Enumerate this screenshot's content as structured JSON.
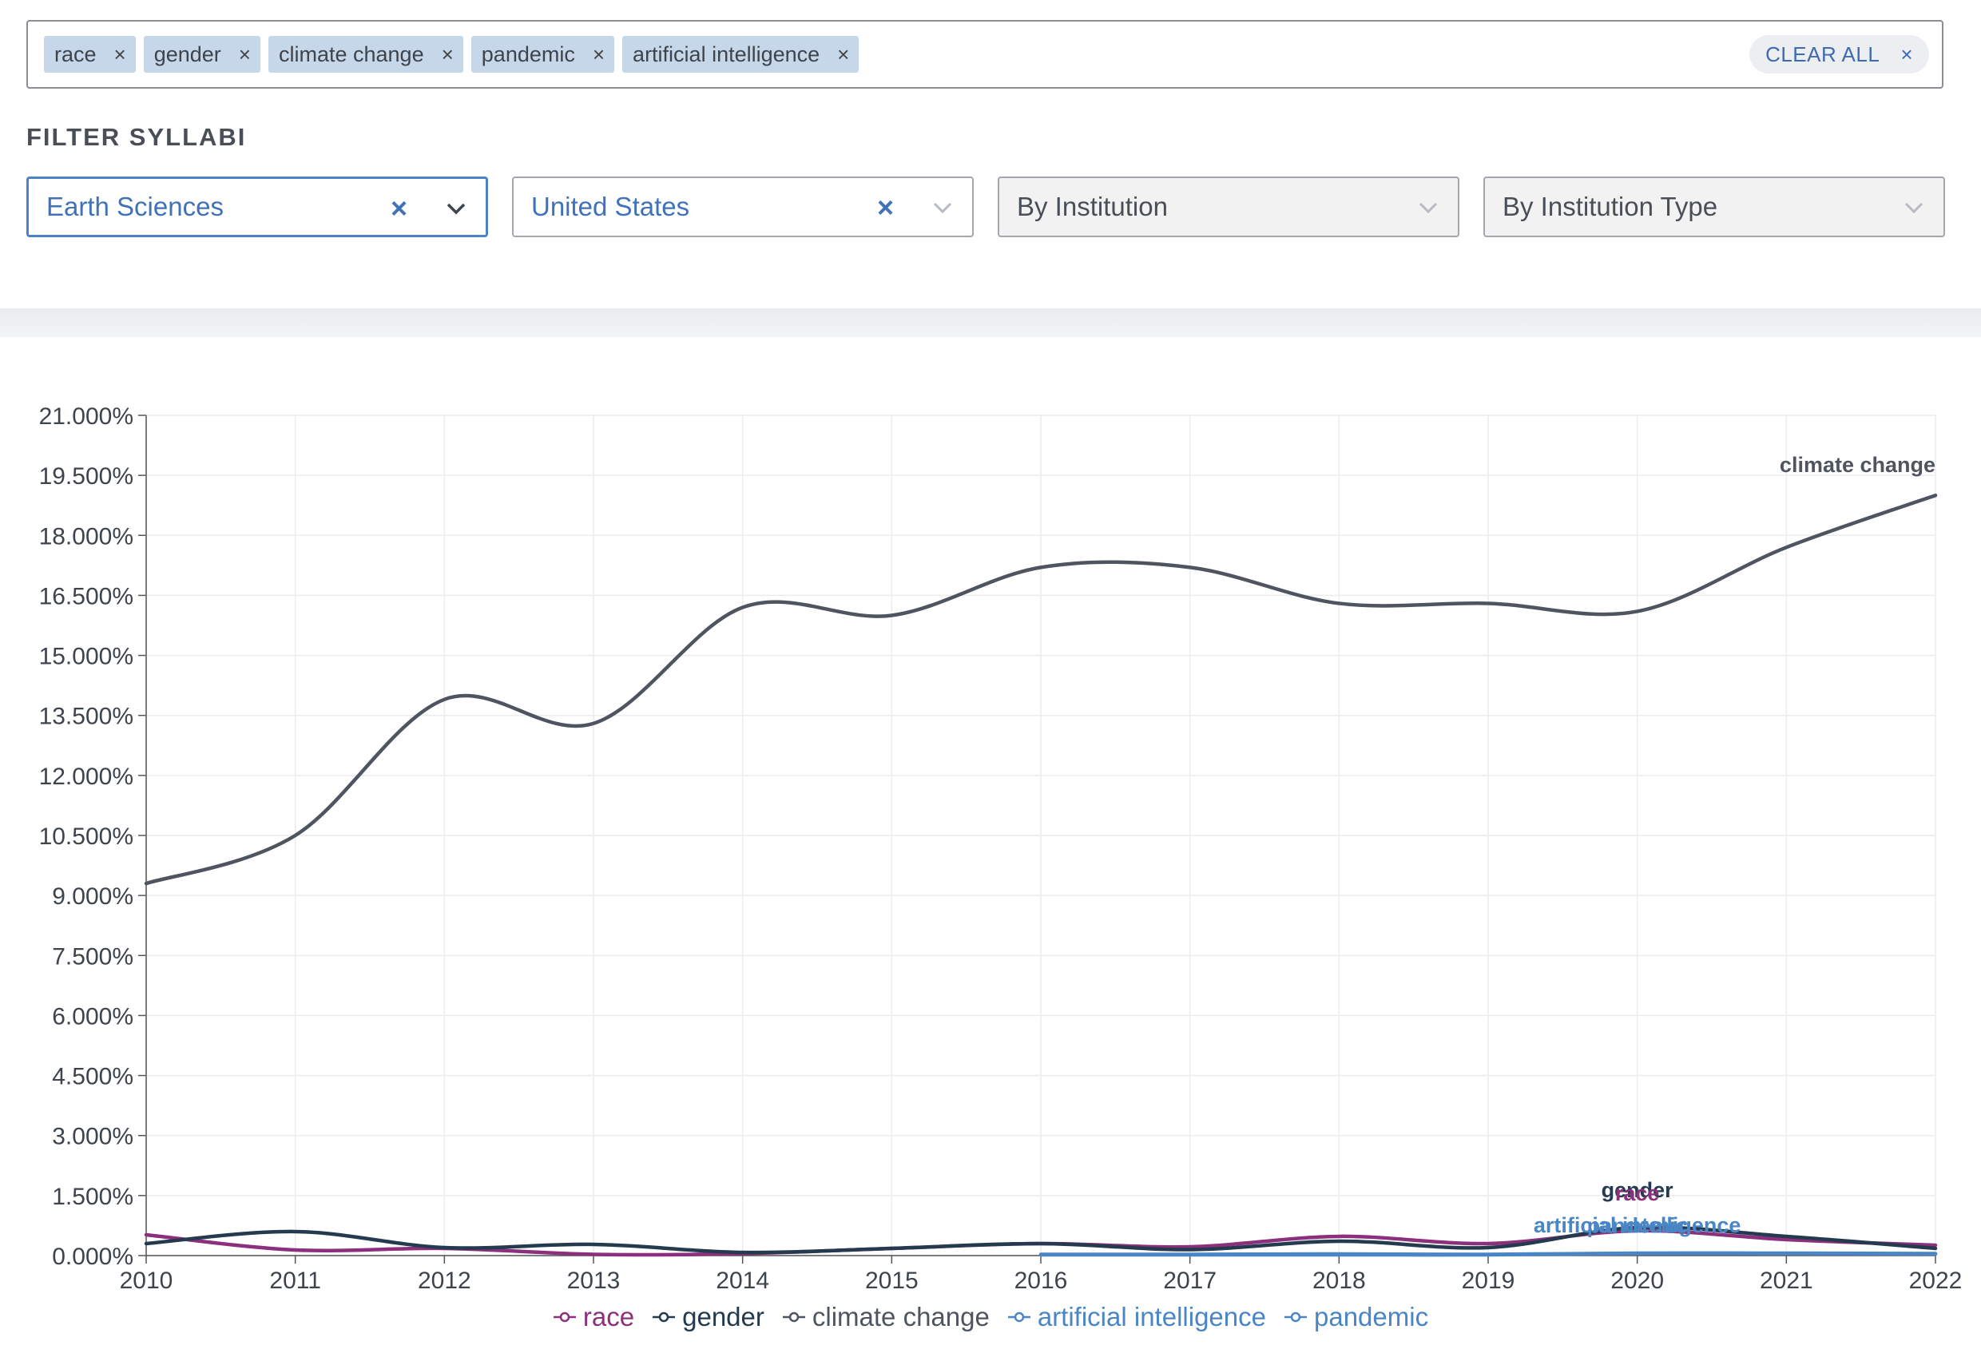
{
  "search": {
    "tags": [
      {
        "label": "race"
      },
      {
        "label": "gender"
      },
      {
        "label": "climate change"
      },
      {
        "label": "pandemic"
      },
      {
        "label": "artificial intelligence"
      }
    ],
    "remove_glyph": "×",
    "clear_all_label": "CLEAR ALL"
  },
  "filters": {
    "heading": "FILTER SYLLABI",
    "field": {
      "value": "Earth Sciences"
    },
    "country": {
      "value": "United States"
    },
    "institution": {
      "placeholder": "By Institution"
    },
    "institution_type": {
      "placeholder": "By Institution Type"
    },
    "clear_glyph": "×"
  },
  "colors": {
    "race": "#8c2f7d",
    "gender": "#233a4f",
    "climate_change": "#4e5560",
    "artificial_intelligence": "#4a86c5",
    "pandemic": "#4a86c5"
  },
  "chart_data": {
    "type": "line",
    "smooth": true,
    "grid": true,
    "legend_position": "bottom-center",
    "ylim": [
      0,
      21
    ],
    "y_unit": "%",
    "y_ticks": [
      "0.000%",
      "1.500%",
      "3.000%",
      "4.500%",
      "6.000%",
      "7.500%",
      "9.000%",
      "10.500%",
      "12.000%",
      "13.500%",
      "15.000%",
      "16.500%",
      "18.000%",
      "19.500%",
      "21.000%"
    ],
    "y_tick_values": [
      0,
      1.5,
      3,
      4.5,
      6,
      7.5,
      9,
      10.5,
      12,
      13.5,
      15,
      16.5,
      18,
      19.5,
      21
    ],
    "x": [
      "2010",
      "2011",
      "2012",
      "2013",
      "2014",
      "2015",
      "2016",
      "2017",
      "2018",
      "2019",
      "2020",
      "2021",
      "2022"
    ],
    "series": [
      {
        "name": "race",
        "color_key": "race",
        "values": [
          0.52,
          0.14,
          0.18,
          0.03,
          0.05,
          0.18,
          0.3,
          0.22,
          0.48,
          0.3,
          0.62,
          0.4,
          0.26
        ]
      },
      {
        "name": "gender",
        "color_key": "gender",
        "values": [
          0.3,
          0.6,
          0.2,
          0.28,
          0.08,
          0.18,
          0.3,
          0.15,
          0.36,
          0.2,
          0.7,
          0.48,
          0.18
        ]
      },
      {
        "name": "climate change",
        "color_key": "climate_change",
        "values": [
          9.3,
          10.5,
          13.9,
          13.3,
          16.2,
          16.0,
          17.2,
          17.2,
          16.3,
          16.3,
          16.1,
          17.7,
          19.0
        ]
      },
      {
        "name": "artificial intelligence",
        "color_key": "artificial_intelligence",
        "values": [
          null,
          null,
          null,
          null,
          null,
          null,
          0.03,
          0.03,
          0.04,
          0.03,
          0.06,
          0.06,
          0.05
        ]
      },
      {
        "name": "pandemic",
        "color_key": "pandemic",
        "values": [
          null,
          null,
          null,
          null,
          null,
          null,
          0.02,
          0.02,
          0.02,
          0.02,
          0.05,
          0.05,
          0.04
        ]
      }
    ],
    "annotations": [
      {
        "text": "climate change",
        "series": "climate change",
        "x": "2022",
        "y": 19.0,
        "color_key": "climate_change"
      },
      {
        "text": "gender",
        "series": "gender",
        "x": "2020",
        "y": 0.7,
        "color_key": "gender"
      },
      {
        "text": "race",
        "series": "race",
        "x": "2020",
        "y": 0.62,
        "color_key": "race"
      },
      {
        "text": "artificial intelligence",
        "series": "artificial intelligence",
        "x": "2020",
        "y": 0.06,
        "color_key": "artificial_intelligence"
      },
      {
        "text": "pandemic",
        "series": "pandemic",
        "x": "2020",
        "y": 0.05,
        "color_key": "pandemic"
      }
    ]
  }
}
